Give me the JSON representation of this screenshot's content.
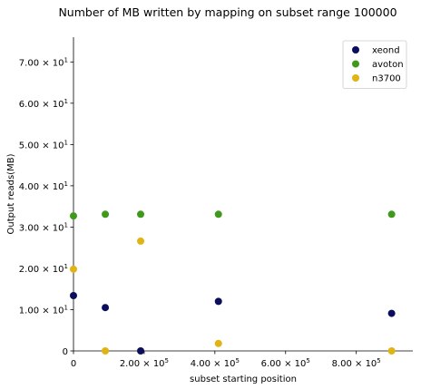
{
  "chart_data": {
    "type": "scatter",
    "title": "Number of MB written by mapping on subset range 100000",
    "xlabel": "subset starting position",
    "ylabel": "Output reads(MB)",
    "xlim": [
      0,
      960000
    ],
    "ylim": [
      0,
      76
    ],
    "grid": false,
    "legend_position": "top-right",
    "x_ticks": [
      {
        "value": 0,
        "mantissa": "0",
        "exp": ""
      },
      {
        "value": 200000,
        "mantissa": "2.00 × 10",
        "exp": "5"
      },
      {
        "value": 400000,
        "mantissa": "4.00 × 10",
        "exp": "5"
      },
      {
        "value": 600000,
        "mantissa": "6.00 × 10",
        "exp": "5"
      },
      {
        "value": 800000,
        "mantissa": "8.00 × 10",
        "exp": "5"
      }
    ],
    "y_ticks": [
      {
        "value": 0,
        "mantissa": "0",
        "exp": ""
      },
      {
        "value": 10,
        "mantissa": "1.00 × 10",
        "exp": "1"
      },
      {
        "value": 20,
        "mantissa": "2.00 × 10",
        "exp": "1"
      },
      {
        "value": 30,
        "mantissa": "3.00 × 10",
        "exp": "1"
      },
      {
        "value": 40,
        "mantissa": "4.00 × 10",
        "exp": "1"
      },
      {
        "value": 50,
        "mantissa": "5.00 × 10",
        "exp": "1"
      },
      {
        "value": 60,
        "mantissa": "6.00 × 10",
        "exp": "1"
      },
      {
        "value": 70,
        "mantissa": "7.00 × 10",
        "exp": "1"
      }
    ],
    "series": [
      {
        "name": "xeond",
        "color": "#0d0d5e",
        "points": [
          [
            0,
            13.4
          ],
          [
            90000,
            10.5
          ],
          [
            190000,
            0
          ],
          [
            410000,
            12.0
          ],
          [
            900000,
            9.1
          ]
        ]
      },
      {
        "name": "avoton",
        "color": "#3f9a1c",
        "points": [
          [
            0,
            32.7
          ],
          [
            90000,
            33.1
          ],
          [
            190000,
            33.1
          ],
          [
            410000,
            33.1
          ],
          [
            900000,
            33.1
          ]
        ]
      },
      {
        "name": "n3700",
        "color": "#dfb414",
        "points": [
          [
            0,
            19.8
          ],
          [
            90000,
            0
          ],
          [
            190000,
            26.6
          ],
          [
            410000,
            1.8
          ],
          [
            900000,
            0
          ]
        ]
      }
    ]
  }
}
